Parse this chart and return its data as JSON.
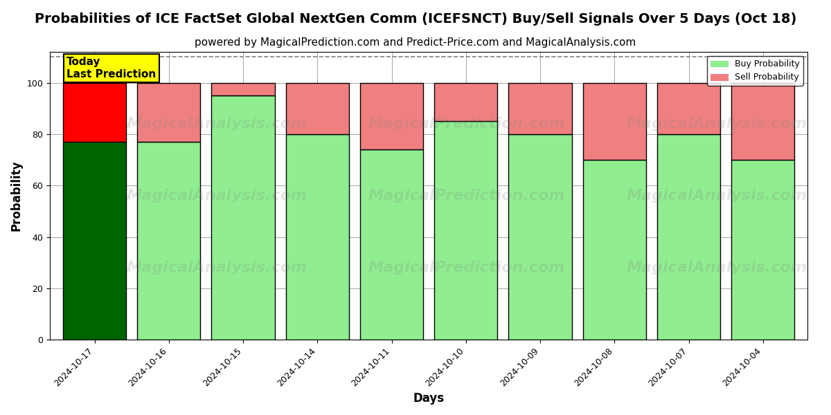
{
  "title": "Probabilities of ICE FactSet Global NextGen Comm (ICEFSNCT) Buy/Sell Signals Over 5 Days (Oct 18)",
  "subtitle": "powered by MagicalPrediction.com and Predict-Price.com and MagicalAnalysis.com",
  "xlabel": "Days",
  "ylabel": "Probability",
  "dates": [
    "2024-10-17",
    "2024-10-16",
    "2024-10-15",
    "2024-10-14",
    "2024-10-11",
    "2024-10-10",
    "2024-10-09",
    "2024-10-08",
    "2024-10-07",
    "2024-10-04"
  ],
  "buy_values": [
    77,
    77,
    95,
    80,
    74,
    85,
    80,
    70,
    80,
    70
  ],
  "sell_values": [
    23,
    23,
    5,
    20,
    26,
    15,
    20,
    30,
    20,
    30
  ],
  "today_buy_color": "#006400",
  "today_sell_color": "#FF0000",
  "buy_color": "#90EE90",
  "sell_color": "#F08080",
  "ylim": [
    0,
    112
  ],
  "yticks": [
    0,
    20,
    40,
    60,
    80,
    100
  ],
  "dashed_line_y": 110,
  "today_annotation_text": "Today\nLast Prediction",
  "today_annotation_color": "#FFFF00",
  "legend_buy_label": "Buy Probability",
  "legend_sell_label": "Sell Probability",
  "bar_width": 0.85,
  "background_color": "#ffffff",
  "title_fontsize": 14,
  "subtitle_fontsize": 11,
  "axis_label_fontsize": 12,
  "tick_fontsize": 9
}
